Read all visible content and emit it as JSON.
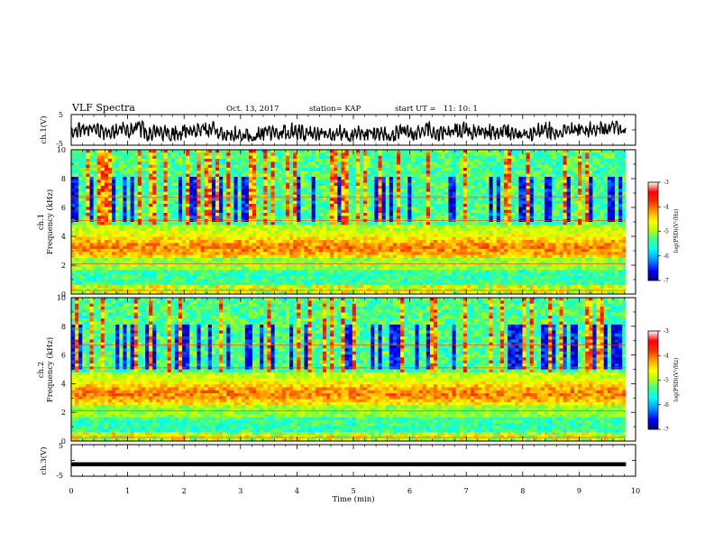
{
  "header": {
    "title": "VLF Spectra",
    "date": "Oct. 13, 2017",
    "station": "station= KAP",
    "start": "start UT =   11: 10: 1"
  },
  "colors": {
    "trace": "#000000",
    "colormap": [
      "#000080",
      "#0000ff",
      "#00a0ff",
      "#00ffff",
      "#40ff80",
      "#c0ff00",
      "#ffff00",
      "#ffa000",
      "#ff3000",
      "#ff0000",
      "#ffffff"
    ]
  },
  "chart_data": [
    {
      "type": "line",
      "ylabel": "ch.1(V)",
      "ylim": [
        -5,
        5
      ],
      "yticks": [
        "5",
        "-5"
      ],
      "xlim": [
        0,
        10
      ],
      "data_extent_min": 9.83,
      "description_values": {
        "mean": -1.0,
        "range": [
          -3.5,
          2.8
        ]
      }
    },
    {
      "type": "heatmap",
      "ylabel": "ch.1\nFrequency (kHz)",
      "ylim": [
        0,
        10
      ],
      "yticks": [
        "0",
        "2",
        "4",
        "6",
        "8",
        "10"
      ],
      "xlim": [
        0,
        10
      ],
      "data_extent_min": 9.83,
      "colorbar": {
        "label": "log(PSD)(V²/Hz)",
        "range": [
          -7,
          -3
        ],
        "ticks": [
          "-3",
          "-4",
          "-5",
          "-6",
          "-7"
        ]
      }
    },
    {
      "type": "heatmap",
      "ylabel": "ch.2\nFrequency (kHz)",
      "ylim": [
        0,
        10
      ],
      "yticks": [
        "0",
        "2",
        "4",
        "6",
        "8",
        "10"
      ],
      "xlim": [
        0,
        10
      ],
      "data_extent_min": 9.83,
      "colorbar": {
        "label": "log(PSD)(V²/Hz)",
        "range": [
          -7,
          -3
        ],
        "ticks": [
          "-3",
          "-4",
          "-5",
          "-6",
          "-7"
        ]
      }
    },
    {
      "type": "line",
      "ylabel": "ch.3(V)",
      "ylim": [
        -5,
        5
      ],
      "yticks": [
        "5",
        "-5"
      ],
      "xlim": [
        0,
        10
      ],
      "data_extent_min": 9.83,
      "values": {
        "level": -1.2
      }
    }
  ],
  "xaxis": {
    "label": "Time (min)",
    "ticks": [
      "0",
      "1",
      "2",
      "3",
      "4",
      "5",
      "6",
      "7",
      "8",
      "9",
      "10"
    ]
  }
}
